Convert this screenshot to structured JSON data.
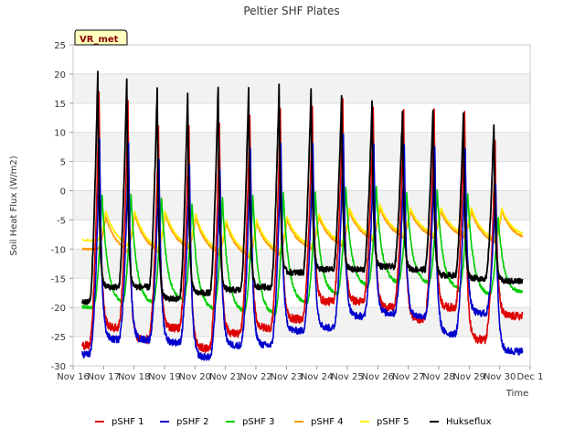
{
  "chart_data": {
    "type": "line",
    "title": "Peltier SHF Plates",
    "xlabel": "Time",
    "ylabel": "Soil Heat Flux (W/m2)",
    "badge": "VR_met",
    "ylim": [
      -30,
      25
    ],
    "yticks": [
      25,
      20,
      15,
      10,
      5,
      0,
      -5,
      -10,
      -15,
      -20,
      -25,
      -30
    ],
    "xlim": [
      0,
      15
    ],
    "xticks": [
      {
        "x": 0,
        "label": "Nov 16"
      },
      {
        "x": 1,
        "label": "Nov 17"
      },
      {
        "x": 2,
        "label": "Nov 18"
      },
      {
        "x": 3,
        "label": "Nov 19"
      },
      {
        "x": 4,
        "label": "Nov 20"
      },
      {
        "x": 5,
        "label": "Nov 21"
      },
      {
        "x": 6,
        "label": "Nov 22"
      },
      {
        "x": 7,
        "label": "Nov 23"
      },
      {
        "x": 8,
        "label": "Nov 24"
      },
      {
        "x": 9,
        "label": "Nov 25"
      },
      {
        "x": 10,
        "label": "Nov 26"
      },
      {
        "x": 11,
        "label": "Nov 27"
      },
      {
        "x": 12,
        "label": "Nov 28"
      },
      {
        "x": 13,
        "label": "Nov 29"
      },
      {
        "x": 14,
        "label": "Nov 30"
      },
      {
        "x": 15,
        "label": "Dec 1"
      }
    ],
    "x_unit": "days since Nov 16",
    "data_range": [
      0.3,
      14.75
    ],
    "peak_times": [
      0.85,
      1.8,
      2.8,
      3.8,
      4.8,
      5.8,
      6.8,
      7.85,
      8.85,
      9.85,
      10.85,
      11.85,
      12.85,
      13.85
    ],
    "series": [
      {
        "name": "pSHF 1",
        "color": "#dd0000",
        "peaks": [
          16.5,
          15.5,
          10.5,
          11.5,
          12.0,
          13.5,
          14.0,
          14.5,
          15.5,
          14.5,
          13.5,
          14.0,
          13.0,
          8.0
        ],
        "troughs": [
          -26.5,
          -23.5,
          -25.5,
          -23.5,
          -27.0,
          -24.5,
          -23.5,
          -22.0,
          -19.0,
          -19.0,
          -20.0,
          -22.0,
          -20.0,
          -25.5,
          -21.5
        ],
        "drift": 0.5
      },
      {
        "name": "pSHF 2",
        "color": "#0000cc",
        "peaks": [
          8.5,
          8.0,
          5.0,
          4.5,
          4.0,
          7.5,
          7.5,
          8.0,
          9.5,
          8.0,
          7.5,
          8.0,
          7.0,
          1.5
        ],
        "troughs": [
          -28.0,
          -25.5,
          -25.5,
          -26.0,
          -28.5,
          -26.5,
          -26.5,
          -24.0,
          -23.5,
          -21.5,
          -21.0,
          -21.5,
          -24.5,
          -21.0,
          -27.5
        ],
        "drift": -1.0
      },
      {
        "name": "pSHF 3",
        "color": "#00cc00",
        "peaks": [
          -0.5,
          -0.5,
          -1.0,
          -2.0,
          -1.0,
          -1.0,
          -0.5,
          -0.5,
          0.5,
          0.5,
          -0.5,
          0.0,
          -0.5,
          -4.5
        ],
        "troughs": [
          -20.0,
          -19.5,
          -19.5,
          -19.0,
          -20.5,
          -21.0,
          -21.5,
          -19.5,
          -18.0,
          -16.5,
          -16.0,
          -16.0,
          -17.0,
          -18.0,
          -17.5
        ],
        "drift": 0.0
      },
      {
        "name": "pSHF 4",
        "color": "#ff9900",
        "peaks": [
          -4.5,
          -4.0,
          -4.0,
          -4.5,
          -5.5,
          -5.5,
          -5.0,
          -4.5,
          -3.5,
          -3.0,
          -3.5,
          -3.5,
          -3.5,
          -3.5
        ],
        "troughs": [
          -10.0,
          -10.5,
          -10.5,
          -10.0,
          -11.0,
          -11.5,
          -11.0,
          -10.0,
          -9.5,
          -8.5,
          -8.0,
          -8.0,
          -8.0,
          -9.0,
          -8.5
        ],
        "drift": 0.0
      },
      {
        "name": "pSHF 5",
        "color": "#ffee00",
        "peaks": [
          -3.5,
          -3.5,
          -3.5,
          -4.0,
          -5.0,
          -5.0,
          -4.5,
          -4.0,
          -3.0,
          -2.5,
          -3.0,
          -3.0,
          -3.0,
          -3.0
        ],
        "troughs": [
          -8.5,
          -9.5,
          -10.0,
          -9.5,
          -10.5,
          -11.0,
          -10.5,
          -9.5,
          -9.0,
          -8.0,
          -7.5,
          -7.5,
          -7.5,
          -8.5,
          -8.0
        ],
        "drift": 0.0
      },
      {
        "name": "Hukseflux",
        "color": "#000000",
        "peaks": [
          20.5,
          19.0,
          17.5,
          17.0,
          18.0,
          17.5,
          18.0,
          17.5,
          16.0,
          15.0,
          13.5,
          14.0,
          13.0,
          11.5
        ],
        "troughs": [
          -19.0,
          -16.5,
          -16.5,
          -18.5,
          -17.5,
          -17.0,
          -16.5,
          -14.0,
          -13.5,
          -13.5,
          -13.0,
          -13.5,
          -14.5,
          -15.0,
          -15.5
        ],
        "drift": 0.0
      }
    ]
  }
}
